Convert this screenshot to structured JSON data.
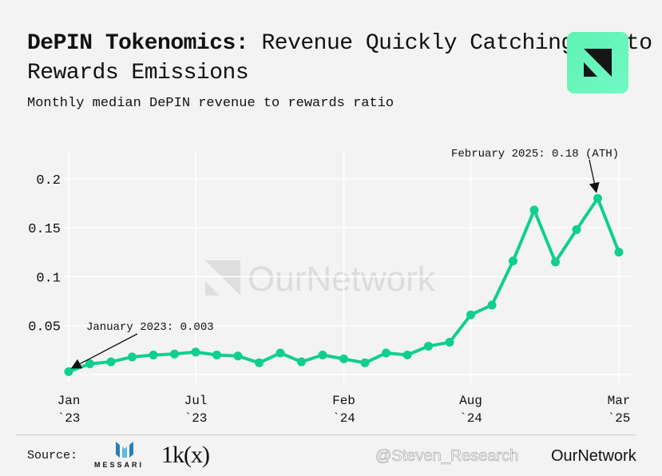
{
  "header": {
    "title_bold": "DePIN Tokenomics:",
    "title_rest": " Revenue Quickly Catching Up to Rewards Emissions",
    "subtitle": "Monthly median DePIN revenue to rewards ratio",
    "brand_color": "#66f5bc"
  },
  "watermark": {
    "text": "OurNetwork"
  },
  "footer": {
    "source_label": "Source:",
    "source_1": "MESSARI",
    "source_2": "1k(x)",
    "brand": "OurNetwork",
    "user_watermark": "@Steven_Research"
  },
  "chart_data": {
    "type": "line",
    "title": "",
    "xlabel": "",
    "ylabel": "",
    "ylim": [
      0,
      0.22
    ],
    "grid": true,
    "line_color": "#0fcf8f",
    "x": [
      "2023-01",
      "2023-02",
      "2023-03",
      "2023-04",
      "2023-05",
      "2023-06",
      "2023-07",
      "2023-08",
      "2023-09",
      "2023-10",
      "2023-11",
      "2023-12",
      "2024-01",
      "2024-02",
      "2024-03",
      "2024-04",
      "2024-05",
      "2024-06",
      "2024-07",
      "2024-08",
      "2024-09",
      "2024-10",
      "2024-11",
      "2024-12",
      "2025-01",
      "2025-02",
      "2025-03"
    ],
    "values": [
      0.003,
      0.011,
      0.013,
      0.018,
      0.02,
      0.021,
      0.023,
      0.02,
      0.019,
      0.012,
      0.022,
      0.013,
      0.02,
      0.016,
      0.012,
      0.022,
      0.02,
      0.029,
      0.033,
      0.061,
      0.071,
      0.116,
      0.168,
      0.115,
      0.148,
      0.18,
      0.125
    ],
    "y_ticks": [
      {
        "value": 0.05,
        "label": "0.05"
      },
      {
        "value": 0.1,
        "label": "0.1"
      },
      {
        "value": 0.15,
        "label": "0.15"
      },
      {
        "value": 0.2,
        "label": "0.2"
      }
    ],
    "x_ticks": [
      {
        "index": 0,
        "line1": "Jan",
        "line2": "`23"
      },
      {
        "index": 6,
        "line1": "Jul",
        "line2": "`23"
      },
      {
        "index": 13,
        "line1": "Feb",
        "line2": "`24"
      },
      {
        "index": 19,
        "line1": "Aug",
        "line2": "`24"
      },
      {
        "index": 26,
        "line1": "Mar",
        "line2": "`25"
      }
    ],
    "annotations": [
      {
        "index": 0,
        "text": "January 2023: 0.003"
      },
      {
        "index": 25,
        "text": "February 2025: 0.18 (ATH)"
      }
    ]
  }
}
